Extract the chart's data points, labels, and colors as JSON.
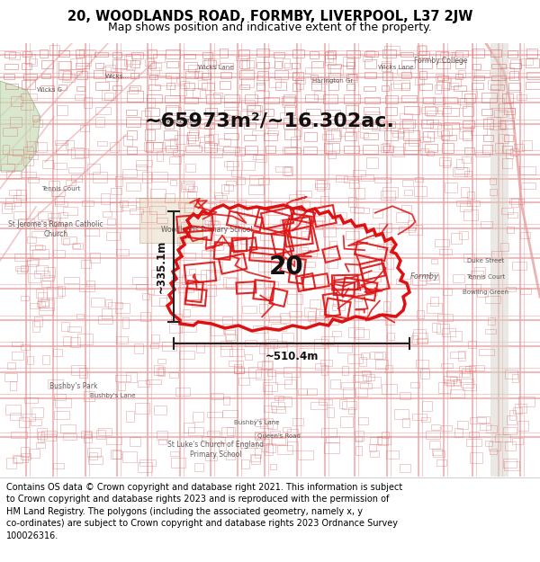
{
  "title": "20, WOODLANDS ROAD, FORMBY, LIVERPOOL, L37 2JW",
  "subtitle": "Map shows position and indicative extent of the property.",
  "area_text": "~65973m²/~16.302ac.",
  "label_20": "20",
  "dim_vertical": "~335.1m",
  "dim_horizontal": "~510.4m",
  "footer_text": "Contains OS data © Crown copyright and database right 2021. This information is subject\nto Crown copyright and database rights 2023 and is reproduced with the permission of\nHM Land Registry. The polygons (including the associated geometry, namely x, y\nco-ordinates) are subject to Crown copyright and database rights 2023 Ordnance Survey\n100026316.",
  "title_fontsize": 10.5,
  "subtitle_fontsize": 9,
  "area_fontsize": 16,
  "footer_fontsize": 7,
  "map_bg": "#ffffff",
  "road_color": "#e8a0a0",
  "building_edge_color": "#d46060",
  "highlight_color": "#dd1111",
  "dim_color": "#222222",
  "text_color": "#444444",
  "label_color": "#111111",
  "header_bg": "#ffffff",
  "footer_bg": "#ffffff",
  "map_road_light": "#f0c8c8",
  "green_color": "#c8ddb8",
  "tan_color": "#e8dcc8",
  "gray_road": "#d8d4cc"
}
